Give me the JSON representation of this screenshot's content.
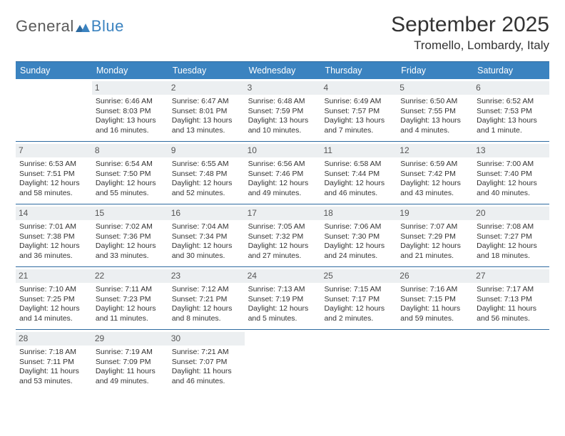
{
  "brand": {
    "part1": "General",
    "part2": "Blue"
  },
  "title": "September 2025",
  "location": "Tromello, Lombardy, Italy",
  "weekdays": [
    "Sunday",
    "Monday",
    "Tuesday",
    "Wednesday",
    "Thursday",
    "Friday",
    "Saturday"
  ],
  "colors": {
    "header_bg": "#3b83c0",
    "border": "#2d6aa0",
    "daynum_bg": "#eceff1",
    "text": "#333333",
    "brand_blue": "#3b83c0",
    "brand_gray": "#5a5a5a"
  },
  "weeks": [
    [
      {
        "day": "",
        "sunrise": "",
        "sunset": "",
        "daylight": ""
      },
      {
        "day": "1",
        "sunrise": "Sunrise: 6:46 AM",
        "sunset": "Sunset: 8:03 PM",
        "daylight": "Daylight: 13 hours and 16 minutes."
      },
      {
        "day": "2",
        "sunrise": "Sunrise: 6:47 AM",
        "sunset": "Sunset: 8:01 PM",
        "daylight": "Daylight: 13 hours and 13 minutes."
      },
      {
        "day": "3",
        "sunrise": "Sunrise: 6:48 AM",
        "sunset": "Sunset: 7:59 PM",
        "daylight": "Daylight: 13 hours and 10 minutes."
      },
      {
        "day": "4",
        "sunrise": "Sunrise: 6:49 AM",
        "sunset": "Sunset: 7:57 PM",
        "daylight": "Daylight: 13 hours and 7 minutes."
      },
      {
        "day": "5",
        "sunrise": "Sunrise: 6:50 AM",
        "sunset": "Sunset: 7:55 PM",
        "daylight": "Daylight: 13 hours and 4 minutes."
      },
      {
        "day": "6",
        "sunrise": "Sunrise: 6:52 AM",
        "sunset": "Sunset: 7:53 PM",
        "daylight": "Daylight: 13 hours and 1 minute."
      }
    ],
    [
      {
        "day": "7",
        "sunrise": "Sunrise: 6:53 AM",
        "sunset": "Sunset: 7:51 PM",
        "daylight": "Daylight: 12 hours and 58 minutes."
      },
      {
        "day": "8",
        "sunrise": "Sunrise: 6:54 AM",
        "sunset": "Sunset: 7:50 PM",
        "daylight": "Daylight: 12 hours and 55 minutes."
      },
      {
        "day": "9",
        "sunrise": "Sunrise: 6:55 AM",
        "sunset": "Sunset: 7:48 PM",
        "daylight": "Daylight: 12 hours and 52 minutes."
      },
      {
        "day": "10",
        "sunrise": "Sunrise: 6:56 AM",
        "sunset": "Sunset: 7:46 PM",
        "daylight": "Daylight: 12 hours and 49 minutes."
      },
      {
        "day": "11",
        "sunrise": "Sunrise: 6:58 AM",
        "sunset": "Sunset: 7:44 PM",
        "daylight": "Daylight: 12 hours and 46 minutes."
      },
      {
        "day": "12",
        "sunrise": "Sunrise: 6:59 AM",
        "sunset": "Sunset: 7:42 PM",
        "daylight": "Daylight: 12 hours and 43 minutes."
      },
      {
        "day": "13",
        "sunrise": "Sunrise: 7:00 AM",
        "sunset": "Sunset: 7:40 PM",
        "daylight": "Daylight: 12 hours and 40 minutes."
      }
    ],
    [
      {
        "day": "14",
        "sunrise": "Sunrise: 7:01 AM",
        "sunset": "Sunset: 7:38 PM",
        "daylight": "Daylight: 12 hours and 36 minutes."
      },
      {
        "day": "15",
        "sunrise": "Sunrise: 7:02 AM",
        "sunset": "Sunset: 7:36 PM",
        "daylight": "Daylight: 12 hours and 33 minutes."
      },
      {
        "day": "16",
        "sunrise": "Sunrise: 7:04 AM",
        "sunset": "Sunset: 7:34 PM",
        "daylight": "Daylight: 12 hours and 30 minutes."
      },
      {
        "day": "17",
        "sunrise": "Sunrise: 7:05 AM",
        "sunset": "Sunset: 7:32 PM",
        "daylight": "Daylight: 12 hours and 27 minutes."
      },
      {
        "day": "18",
        "sunrise": "Sunrise: 7:06 AM",
        "sunset": "Sunset: 7:30 PM",
        "daylight": "Daylight: 12 hours and 24 minutes."
      },
      {
        "day": "19",
        "sunrise": "Sunrise: 7:07 AM",
        "sunset": "Sunset: 7:29 PM",
        "daylight": "Daylight: 12 hours and 21 minutes."
      },
      {
        "day": "20",
        "sunrise": "Sunrise: 7:08 AM",
        "sunset": "Sunset: 7:27 PM",
        "daylight": "Daylight: 12 hours and 18 minutes."
      }
    ],
    [
      {
        "day": "21",
        "sunrise": "Sunrise: 7:10 AM",
        "sunset": "Sunset: 7:25 PM",
        "daylight": "Daylight: 12 hours and 14 minutes."
      },
      {
        "day": "22",
        "sunrise": "Sunrise: 7:11 AM",
        "sunset": "Sunset: 7:23 PM",
        "daylight": "Daylight: 12 hours and 11 minutes."
      },
      {
        "day": "23",
        "sunrise": "Sunrise: 7:12 AM",
        "sunset": "Sunset: 7:21 PM",
        "daylight": "Daylight: 12 hours and 8 minutes."
      },
      {
        "day": "24",
        "sunrise": "Sunrise: 7:13 AM",
        "sunset": "Sunset: 7:19 PM",
        "daylight": "Daylight: 12 hours and 5 minutes."
      },
      {
        "day": "25",
        "sunrise": "Sunrise: 7:15 AM",
        "sunset": "Sunset: 7:17 PM",
        "daylight": "Daylight: 12 hours and 2 minutes."
      },
      {
        "day": "26",
        "sunrise": "Sunrise: 7:16 AM",
        "sunset": "Sunset: 7:15 PM",
        "daylight": "Daylight: 11 hours and 59 minutes."
      },
      {
        "day": "27",
        "sunrise": "Sunrise: 7:17 AM",
        "sunset": "Sunset: 7:13 PM",
        "daylight": "Daylight: 11 hours and 56 minutes."
      }
    ],
    [
      {
        "day": "28",
        "sunrise": "Sunrise: 7:18 AM",
        "sunset": "Sunset: 7:11 PM",
        "daylight": "Daylight: 11 hours and 53 minutes."
      },
      {
        "day": "29",
        "sunrise": "Sunrise: 7:19 AM",
        "sunset": "Sunset: 7:09 PM",
        "daylight": "Daylight: 11 hours and 49 minutes."
      },
      {
        "day": "30",
        "sunrise": "Sunrise: 7:21 AM",
        "sunset": "Sunset: 7:07 PM",
        "daylight": "Daylight: 11 hours and 46 minutes."
      },
      {
        "day": "",
        "sunrise": "",
        "sunset": "",
        "daylight": ""
      },
      {
        "day": "",
        "sunrise": "",
        "sunset": "",
        "daylight": ""
      },
      {
        "day": "",
        "sunrise": "",
        "sunset": "",
        "daylight": ""
      },
      {
        "day": "",
        "sunrise": "",
        "sunset": "",
        "daylight": ""
      }
    ]
  ]
}
